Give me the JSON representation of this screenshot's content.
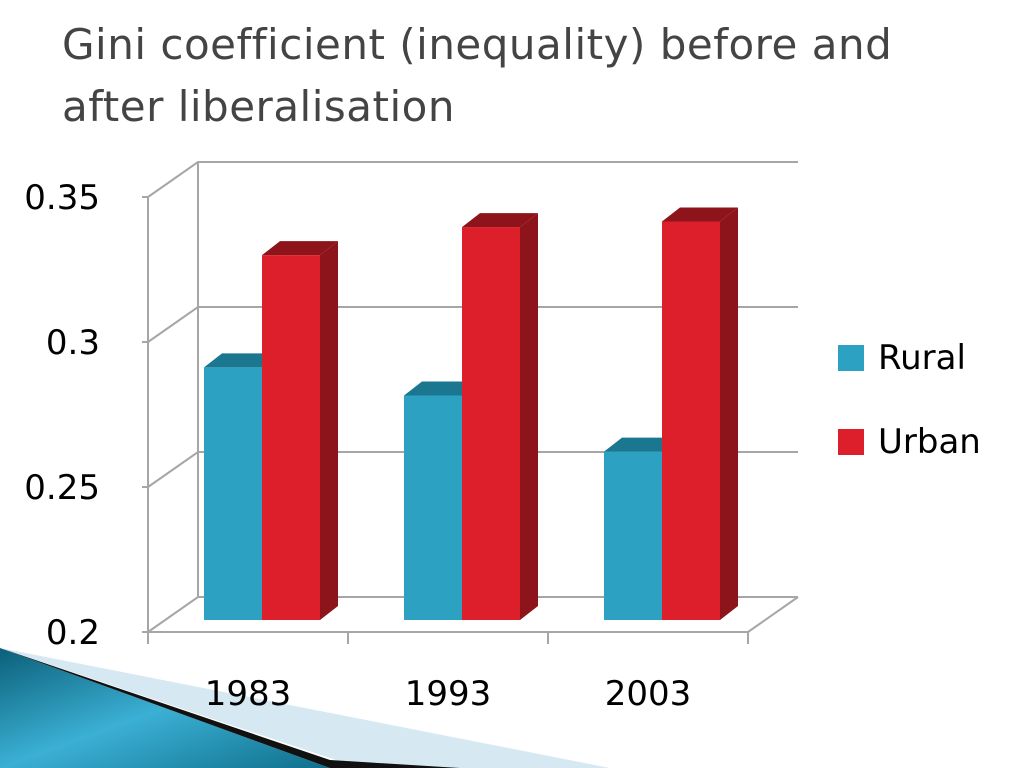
{
  "slide": {
    "title": "Gini coefficient (inequality) before and after liberalisation"
  },
  "chart_data": {
    "type": "bar",
    "title": "Gini coefficient (inequality) before and after liberalisation",
    "xlabel": "",
    "ylabel": "",
    "categories": [
      "1983",
      "1993",
      "2003"
    ],
    "series": [
      {
        "name": "Rural",
        "values": [
          0.29,
          0.28,
          0.26
        ],
        "color": "#2ca1c2"
      },
      {
        "name": "Urban",
        "values": [
          0.33,
          0.34,
          0.342
        ],
        "color": "#dc1f2a"
      }
    ],
    "ylim": [
      0.2,
      0.35
    ],
    "yticks": [
      "0.35",
      "0.3",
      "0.25",
      "0.2"
    ],
    "grid": true,
    "style": "3d-clustered-column",
    "legend_position": "right"
  },
  "colors": {
    "rural": "#2ca1c2",
    "rural_side": "#1b7690",
    "urban": "#dc1f2a",
    "urban_side": "#8e141b",
    "title": "#444444",
    "grid": "#a6a6a6"
  }
}
